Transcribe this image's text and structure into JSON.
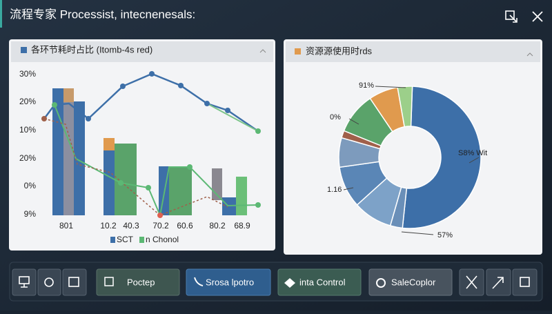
{
  "header": {
    "title": "流程专家 Processist, intecnenesals:"
  },
  "left_panel": {
    "title": "各环节耗时占比 (Itomb-4s red)",
    "y_labels": [
      "30%",
      "20%",
      "10%",
      "20%",
      "0%",
      "9%"
    ],
    "x_labels": [
      "801",
      "10.2",
      "40.3",
      "70.2",
      "60.6",
      "80.2",
      "68.9"
    ],
    "legend": [
      "SCT",
      "n Chonol"
    ]
  },
  "right_panel": {
    "title": "资源源使用时rds",
    "labels": [
      "91%",
      "0%",
      "S8% Wit",
      "1.16",
      "57%"
    ]
  },
  "toolbar": {
    "buttons": [
      "Poctep",
      "Srosa lpotro",
      "inta Control",
      "SaleCoplor"
    ]
  }
}
